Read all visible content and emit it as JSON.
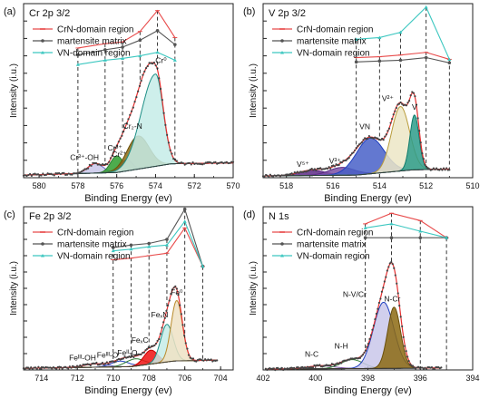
{
  "chart_data": [
    {
      "type": "line",
      "panel_label": "(a)",
      "title": "Cr 2p 3/2",
      "xlabel": "Binding Energy (ev)",
      "ylabel": "Intensity (i.u.)",
      "xlim": [
        580.8,
        570
      ],
      "ylim": [
        0,
        10
      ],
      "x_ticks": [
        580,
        578,
        576,
        574,
        572,
        570
      ],
      "legend": {
        "placement": "top-left",
        "entries": [
          "CrN-domain region",
          "martensite matrix",
          "VN-domain region"
        ]
      },
      "series": [
        {
          "name": "CrN-domain region",
          "color": "#e84a4a",
          "x": [
            578,
            576.6,
            575.7,
            574.8,
            573.9,
            573
          ],
          "y": [
            7.45,
            7.7,
            7.8,
            8.4,
            9.6,
            8.05
          ]
        },
        {
          "name": "martensite matrix",
          "color": "#555555",
          "x": [
            578,
            576.6,
            575.7,
            574.8,
            573.9,
            573
          ],
          "y": [
            7.05,
            7.35,
            7.5,
            7.9,
            8.45,
            7.65
          ]
        },
        {
          "name": "VN-domain region",
          "color": "#3cc7c0",
          "x": [
            578,
            576.6,
            575.7,
            574.8,
            573.9,
            573
          ],
          "y": [
            6.5,
            6.75,
            6.85,
            7.0,
            7.2,
            6.75
          ]
        }
      ],
      "dashed_lines_x": [
        578,
        576.6,
        575.7,
        574.8,
        573.9,
        573
      ],
      "spectrum": {
        "x_start": 580.8,
        "x_end": 570,
        "background": [
          [
            580.8,
            0.15
          ],
          [
            576,
            0.3
          ],
          [
            573.2,
            0.8
          ],
          [
            570,
            0.85
          ]
        ]
      },
      "components": [
        {
          "label": "Cr³⁺-OH",
          "center": 577.1,
          "width": 0.55,
          "height": 0.55,
          "fill": "#c9c7ea",
          "stroke": "#6b63c4"
        },
        {
          "label": "Cr³⁺",
          "center": 576.0,
          "width": 0.45,
          "height": 0.95,
          "fill": "#2e9e2e",
          "stroke": "#2e7d32"
        },
        {
          "label": "Cr²⁺",
          "center": 575.5,
          "width": 0.4,
          "height": 0.65,
          "fill": "#c9c7ea",
          "stroke": "#2a2ac4"
        },
        {
          "label": "Cr₂-N",
          "center": 574.9,
          "width": 0.8,
          "height": 1.9,
          "fill": "#8c6a12",
          "stroke": "#6a4f0a"
        },
        {
          "label": "Cr⁰",
          "center": 574.0,
          "width": 0.55,
          "height": 5.3,
          "fill": "#c6ece8",
          "stroke": "#1e8f86",
          "tail": 1.9
        }
      ],
      "envelope_color": "#e63030"
    },
    {
      "type": "line",
      "panel_label": "(b)",
      "title": "V 2p 3/2",
      "xlabel": "Binding Energy (ev)",
      "ylabel": "Intensity (i.u.)",
      "xlim": [
        519,
        510
      ],
      "ylim": [
        0,
        10
      ],
      "x_ticks": [
        518,
        516,
        514,
        512,
        510
      ],
      "legend": {
        "placement": "top-left",
        "entries": [
          "CrN-domain region",
          "martensite matrix",
          "VN-domain region"
        ]
      },
      "series": [
        {
          "name": "CrN-domain region",
          "color": "#e84a4a",
          "x": [
            515,
            514,
            513.1,
            512,
            511
          ],
          "y": [
            6.9,
            6.95,
            7.05,
            7.2,
            6.8
          ]
        },
        {
          "name": "martensite matrix",
          "color": "#555555",
          "x": [
            515,
            514,
            513.1,
            512,
            511
          ],
          "y": [
            6.65,
            6.7,
            6.75,
            6.9,
            6.6
          ]
        },
        {
          "name": "VN-domain region",
          "color": "#3cc7c0",
          "x": [
            515,
            514,
            513.1,
            512,
            511
          ],
          "y": [
            7.95,
            8.05,
            8.35,
            9.8,
            6.8
          ]
        }
      ],
      "dashed_lines_x": [
        515,
        514,
        513.1,
        512,
        511
      ],
      "spectrum": {
        "x_start": 519,
        "x_end": 511,
        "background": [
          [
            519,
            0.1
          ],
          [
            515,
            0.15
          ],
          [
            512.6,
            0.45
          ],
          [
            511,
            0.5
          ]
        ]
      },
      "components": [
        {
          "label": "V⁵⁺",
          "center": 516.9,
          "width": 0.8,
          "height": 0.3,
          "fill": "#5d2a86",
          "stroke": "#5d2a86"
        },
        {
          "label": "V³⁺",
          "center": 515.6,
          "width": 0.8,
          "height": 0.45,
          "fill": "#7b4fa3",
          "stroke": "#5a2d87"
        },
        {
          "label": "VN",
          "center": 514.4,
          "width": 0.85,
          "height": 2.05,
          "fill": "#4860c8",
          "stroke": "#1f3fbf"
        },
        {
          "label": "V²⁺",
          "center": 513.1,
          "width": 0.55,
          "height": 3.7,
          "fill": "#ece6c6",
          "stroke": "#b89b3a"
        },
        {
          "label": "V",
          "center": 512.5,
          "width": 0.28,
          "height": 3.15,
          "fill": "#2d9c8a",
          "stroke": "#0f7a6a"
        }
      ],
      "envelope_color": "#e63030"
    },
    {
      "type": "line",
      "panel_label": "(c)",
      "title": "Fe 2p 3/2",
      "xlabel": "Binding Energy (ev)",
      "ylabel": "Intensity (i.u.)",
      "xlim": [
        715,
        703.3
      ],
      "ylim": [
        0,
        10
      ],
      "x_ticks": [
        714,
        712,
        710,
        708,
        706,
        704
      ],
      "legend": {
        "placement": "top-left",
        "entries": [
          "CrN-domain region",
          "martensite matrix",
          "VN-domain region"
        ]
      },
      "series": [
        {
          "name": "CrN-domain region",
          "color": "#e84a4a",
          "x": [
            710,
            709,
            708,
            707,
            706,
            705
          ],
          "y": [
            6.75,
            6.85,
            7.0,
            7.15,
            8.7,
            6.35
          ]
        },
        {
          "name": "martensite matrix",
          "color": "#555555",
          "x": [
            710,
            709,
            708,
            707,
            706,
            705
          ],
          "y": [
            7.5,
            7.65,
            7.75,
            8.0,
            9.85,
            6.35
          ]
        },
        {
          "name": "VN-domain region",
          "color": "#3cc7c0",
          "x": [
            710,
            709,
            708,
            707,
            706,
            705
          ],
          "y": [
            7.3,
            7.4,
            7.55,
            7.65,
            9.1,
            6.35
          ]
        }
      ],
      "dashed_lines_x": [
        710,
        709,
        708,
        707,
        706,
        705
      ],
      "spectrum": {
        "x_start": 715,
        "x_end": 704.2,
        "background": [
          [
            715,
            0.1
          ],
          [
            709,
            0.2
          ],
          [
            706.6,
            0.55
          ],
          [
            704.2,
            0.6
          ]
        ]
      },
      "components": [
        {
          "label": "Feᴵᴵᴵ-OH",
          "center": 711.0,
          "width": 0.9,
          "height": 0.2,
          "fill": "none",
          "stroke": "#6b63c4"
        },
        {
          "label": "Feᴵᴵᴵ-O",
          "center": 709.6,
          "width": 0.7,
          "height": 0.35,
          "fill": "none",
          "stroke": "#1f3fbf"
        },
        {
          "label": "Feᴵᴵ-O",
          "center": 708.8,
          "width": 0.7,
          "height": 0.45,
          "fill": "none",
          "stroke": "#2e7d32"
        },
        {
          "label": "FeₓC",
          "center": 707.9,
          "width": 0.55,
          "height": 0.85,
          "fill": "#ee1111",
          "stroke": "#cc0000"
        },
        {
          "label": "FeₓN",
          "center": 707.0,
          "width": 0.5,
          "height": 2.3,
          "fill": "#c6ece8",
          "stroke": "#1e8f86"
        },
        {
          "label": "Fe⁰",
          "center": 706.45,
          "width": 0.45,
          "height": 3.7,
          "fill": "#efe2c4",
          "stroke": "#b88a2a"
        }
      ],
      "envelope_color": "#e63030"
    },
    {
      "type": "line",
      "panel_label": "(d)",
      "title": "N 1s",
      "xlabel": "Binding Energy (ev)",
      "ylabel": "Intensity (i.u.)",
      "xlim": [
        402,
        394
      ],
      "ylim": [
        0,
        10
      ],
      "x_ticks": [
        402,
        400,
        398,
        396,
        394
      ],
      "legend": {
        "placement": "top-left",
        "entries": [
          "CrN-domain region",
          "martensite matrix",
          "VN-domain region"
        ]
      },
      "series": [
        {
          "name": "CrN-domain region",
          "color": "#e84a4a",
          "x": [
            398.1,
            397.1,
            396,
            395
          ],
          "y": [
            8.95,
            9.6,
            9.15,
            8.1
          ]
        },
        {
          "name": "martensite matrix",
          "color": "#555555",
          "x": [
            398.1,
            397.1,
            396,
            395
          ],
          "y": [
            8.1,
            8.1,
            8.1,
            8.1
          ]
        },
        {
          "name": "VN-domain region",
          "color": "#3cc7c0",
          "x": [
            398.1,
            397.1,
            396,
            395
          ],
          "y": [
            8.7,
            8.95,
            8.5,
            8.1
          ]
        }
      ],
      "dashed_lines_x": [
        398.1,
        397.1,
        396,
        395
      ],
      "spectrum": {
        "x_start": 401.9,
        "x_end": 395.2,
        "background": [
          [
            401.9,
            0.05
          ],
          [
            396.8,
            0.1
          ],
          [
            395.2,
            0.12
          ]
        ]
      },
      "components": [
        {
          "label": "N-C",
          "center": 399.8,
          "width": 0.75,
          "height": 0.18,
          "fill": "none",
          "stroke": "#7b4fa3"
        },
        {
          "label": "N-H",
          "center": 398.6,
          "width": 0.6,
          "height": 0.55,
          "fill": "none",
          "stroke": "#2e7d32"
        },
        {
          "label": "N-V/Cr",
          "center": 397.4,
          "width": 0.55,
          "height": 4.05,
          "fill": "#c9c7ea",
          "stroke": "#1f3fbf"
        },
        {
          "label": "N-Cr",
          "center": 397.0,
          "width": 0.35,
          "height": 3.75,
          "fill": "#8c6a12",
          "stroke": "#6a4f0a"
        }
      ],
      "envelope_color": "#e63030"
    }
  ]
}
